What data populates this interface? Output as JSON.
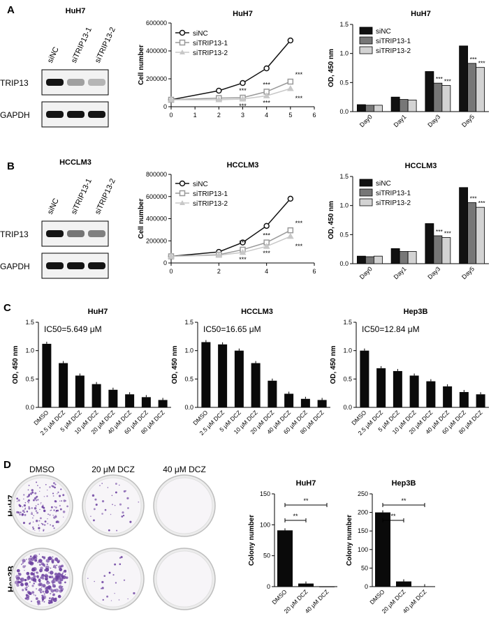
{
  "panels": {
    "A": "A",
    "B": "B",
    "C": "C",
    "D": "D"
  },
  "colors": {
    "siNC": "#111111",
    "si1": "#777777",
    "si2": "#d3d3d3",
    "line1": "#111111",
    "line2": "#999999",
    "line3": "#c8c8c8",
    "bar": "#0a0a0a",
    "crystal": "#6b3fa0"
  },
  "blots": [
    {
      "title": "HuH7",
      "lanes": [
        "siNC",
        "siTRIP13-1",
        "siTRIP13-2"
      ],
      "rows": [
        "TRIP13",
        "GAPDH"
      ],
      "trip13_intensity": [
        1.0,
        0.35,
        0.25
      ]
    },
    {
      "title": "HCCLM3",
      "lanes": [
        "siNC",
        "siTRIP13-1",
        "siTRIP13-2"
      ],
      "rows": [
        "TRIP13",
        "GAPDH"
      ],
      "trip13_intensity": [
        1.0,
        0.55,
        0.5
      ]
    }
  ],
  "colony": {
    "columns": [
      "DMSO",
      "20 μM DCZ",
      "40 μM DCZ"
    ],
    "rows": [
      "HuH7",
      "Hep3B"
    ],
    "density": [
      [
        0.55,
        0.12,
        0.0
      ],
      [
        0.9,
        0.08,
        0.0
      ]
    ]
  },
  "chart_data": [
    {
      "type": "line",
      "title": "HuH7",
      "xlabel": "",
      "ylabel": "Cell number",
      "xlim": [
        0,
        6
      ],
      "ylim": [
        0,
        600000
      ],
      "xticks": [
        "0",
        "1",
        "2",
        "3",
        "4",
        "5",
        "6"
      ],
      "yticks": [
        "0",
        "200000",
        "400000",
        "600000"
      ],
      "legend": [
        "siNC",
        "siTRIP13-1",
        "siTRIP13-2"
      ],
      "x": [
        0,
        2,
        3,
        4,
        5
      ],
      "series": [
        {
          "name": "siNC",
          "values": [
            50000,
            115000,
            170000,
            275000,
            475000
          ]
        },
        {
          "name": "siTRIP13-1",
          "values": [
            50000,
            62000,
            65000,
            108000,
            180000
          ]
        },
        {
          "name": "siTRIP13-2",
          "values": [
            50000,
            50000,
            55000,
            78000,
            130000
          ]
        }
      ],
      "annotations": [
        "***",
        "***",
        "***",
        "***",
        "***",
        "***"
      ]
    },
    {
      "type": "bar",
      "title": "HuH7",
      "ylabel": "OD, 450 nm",
      "ylim": [
        0,
        1.5
      ],
      "yticks": [
        "0.0",
        "0.5",
        "1.0",
        "1.5"
      ],
      "categories": [
        "Day0",
        "Day1",
        "Day3",
        "Day5"
      ],
      "series": [
        {
          "name": "siNC",
          "values": [
            0.12,
            0.25,
            0.69,
            1.13
          ]
        },
        {
          "name": "siTRIP13-1",
          "values": [
            0.11,
            0.21,
            0.49,
            0.83
          ]
        },
        {
          "name": "siTRIP13-2",
          "values": [
            0.11,
            0.2,
            0.45,
            0.76
          ]
        }
      ],
      "annotations": [
        "***",
        "***",
        "***",
        "***"
      ]
    },
    {
      "type": "line",
      "title": "HCCLM3",
      "xlabel": "",
      "ylabel": "Cell number",
      "xlim": [
        0,
        6
      ],
      "ylim": [
        0,
        800000
      ],
      "xticks": [
        "0",
        "2",
        "4",
        "6"
      ],
      "yticks": [
        "0",
        "200000",
        "400000",
        "600000",
        "800000"
      ],
      "legend": [
        "siNC",
        "siTRIP13-1",
        "siTRIP13-2"
      ],
      "x": [
        0,
        2,
        3,
        4,
        5
      ],
      "series": [
        {
          "name": "siNC",
          "values": [
            60000,
            100000,
            185000,
            335000,
            580000
          ]
        },
        {
          "name": "siTRIP13-1",
          "values": [
            60000,
            75000,
            120000,
            185000,
            295000
          ]
        },
        {
          "name": "siTRIP13-2",
          "values": [
            60000,
            70000,
            95000,
            150000,
            240000
          ]
        }
      ],
      "annotations": [
        "***",
        "***",
        "***",
        "***",
        "***",
        "***"
      ]
    },
    {
      "type": "bar",
      "title": "HCCLM3",
      "ylabel": "OD, 450 nm",
      "ylim": [
        0,
        1.5
      ],
      "yticks": [
        "0.0",
        "0.5",
        "1.0",
        "1.5"
      ],
      "categories": [
        "Day0",
        "Day1",
        "Day3",
        "Day5"
      ],
      "series": [
        {
          "name": "siNC",
          "values": [
            0.13,
            0.26,
            0.69,
            1.31
          ]
        },
        {
          "name": "siTRIP13-1",
          "values": [
            0.12,
            0.21,
            0.48,
            1.05
          ]
        },
        {
          "name": "siTRIP13-2",
          "values": [
            0.13,
            0.21,
            0.45,
            0.97
          ]
        }
      ],
      "annotations": [
        "***",
        "***",
        "***",
        "***"
      ]
    },
    {
      "type": "bar",
      "title": "HuH7",
      "ylabel": "OD, 450 nm",
      "ylim": [
        0,
        1.5
      ],
      "yticks": [
        "0.0",
        "0.5",
        "1.0",
        "1.5"
      ],
      "annotation": "IC50=5.649 μM",
      "categories": [
        "DMSO",
        "2.5 μM DCZ",
        "5 μM DCZ",
        "10 μM DCZ",
        "20 μM DCZ",
        "40 μM DCZ",
        "60 μM DCZ",
        "80 μM DCZ"
      ],
      "values": [
        1.12,
        0.78,
        0.56,
        0.41,
        0.31,
        0.23,
        0.18,
        0.13
      ]
    },
    {
      "type": "bar",
      "title": "HCCLM3",
      "ylabel": "OD, 450 nm",
      "ylim": [
        0,
        1.5
      ],
      "yticks": [
        "0.0",
        "0.5",
        "1.0",
        "1.5"
      ],
      "annotation": "IC50=16.65 μM",
      "categories": [
        "DMSO",
        "2.5 μM DCZ",
        "5 μM DCZ",
        "10 μM DCZ",
        "20 μM DCZ",
        "40 μM DCZ",
        "60 μM DCZ",
        "80 μM DCZ"
      ],
      "values": [
        1.15,
        1.11,
        1.0,
        0.78,
        0.47,
        0.24,
        0.15,
        0.13
      ]
    },
    {
      "type": "bar",
      "title": "Hep3B",
      "ylabel": "OD, 450 nm",
      "ylim": [
        0,
        1.5
      ],
      "yticks": [
        "0.0",
        "0.5",
        "1.0",
        "1.5"
      ],
      "annotation": "IC50=12.84 μM",
      "categories": [
        "DMSO",
        "2.5 μM DCZ",
        "5 μM DCZ",
        "10 μM DCZ",
        "20 μM DCZ",
        "40 μM DCZ",
        "60 μM DCZ",
        "80 μM DCZ"
      ],
      "values": [
        1.0,
        0.69,
        0.64,
        0.56,
        0.46,
        0.37,
        0.27,
        0.23
      ]
    },
    {
      "type": "bar",
      "title": "HuH7",
      "ylabel": "Colony number",
      "ylim": [
        0,
        150
      ],
      "yticks": [
        "0",
        "50",
        "100",
        "150"
      ],
      "categories": [
        "DMSO",
        "20 μM DCZ",
        "40 μM DCZ"
      ],
      "values": [
        91,
        5,
        0
      ],
      "annotations": [
        "**",
        "**"
      ]
    },
    {
      "type": "bar",
      "title": "Hep3B",
      "ylabel": "Colony number",
      "ylim": [
        0,
        250
      ],
      "yticks": [
        "0",
        "50",
        "100",
        "150",
        "200",
        "250"
      ],
      "categories": [
        "DMSO",
        "20 μM DCZ",
        "40 μM DCZ"
      ],
      "values": [
        200,
        14,
        1
      ],
      "annotations": [
        "**",
        "**"
      ]
    }
  ]
}
